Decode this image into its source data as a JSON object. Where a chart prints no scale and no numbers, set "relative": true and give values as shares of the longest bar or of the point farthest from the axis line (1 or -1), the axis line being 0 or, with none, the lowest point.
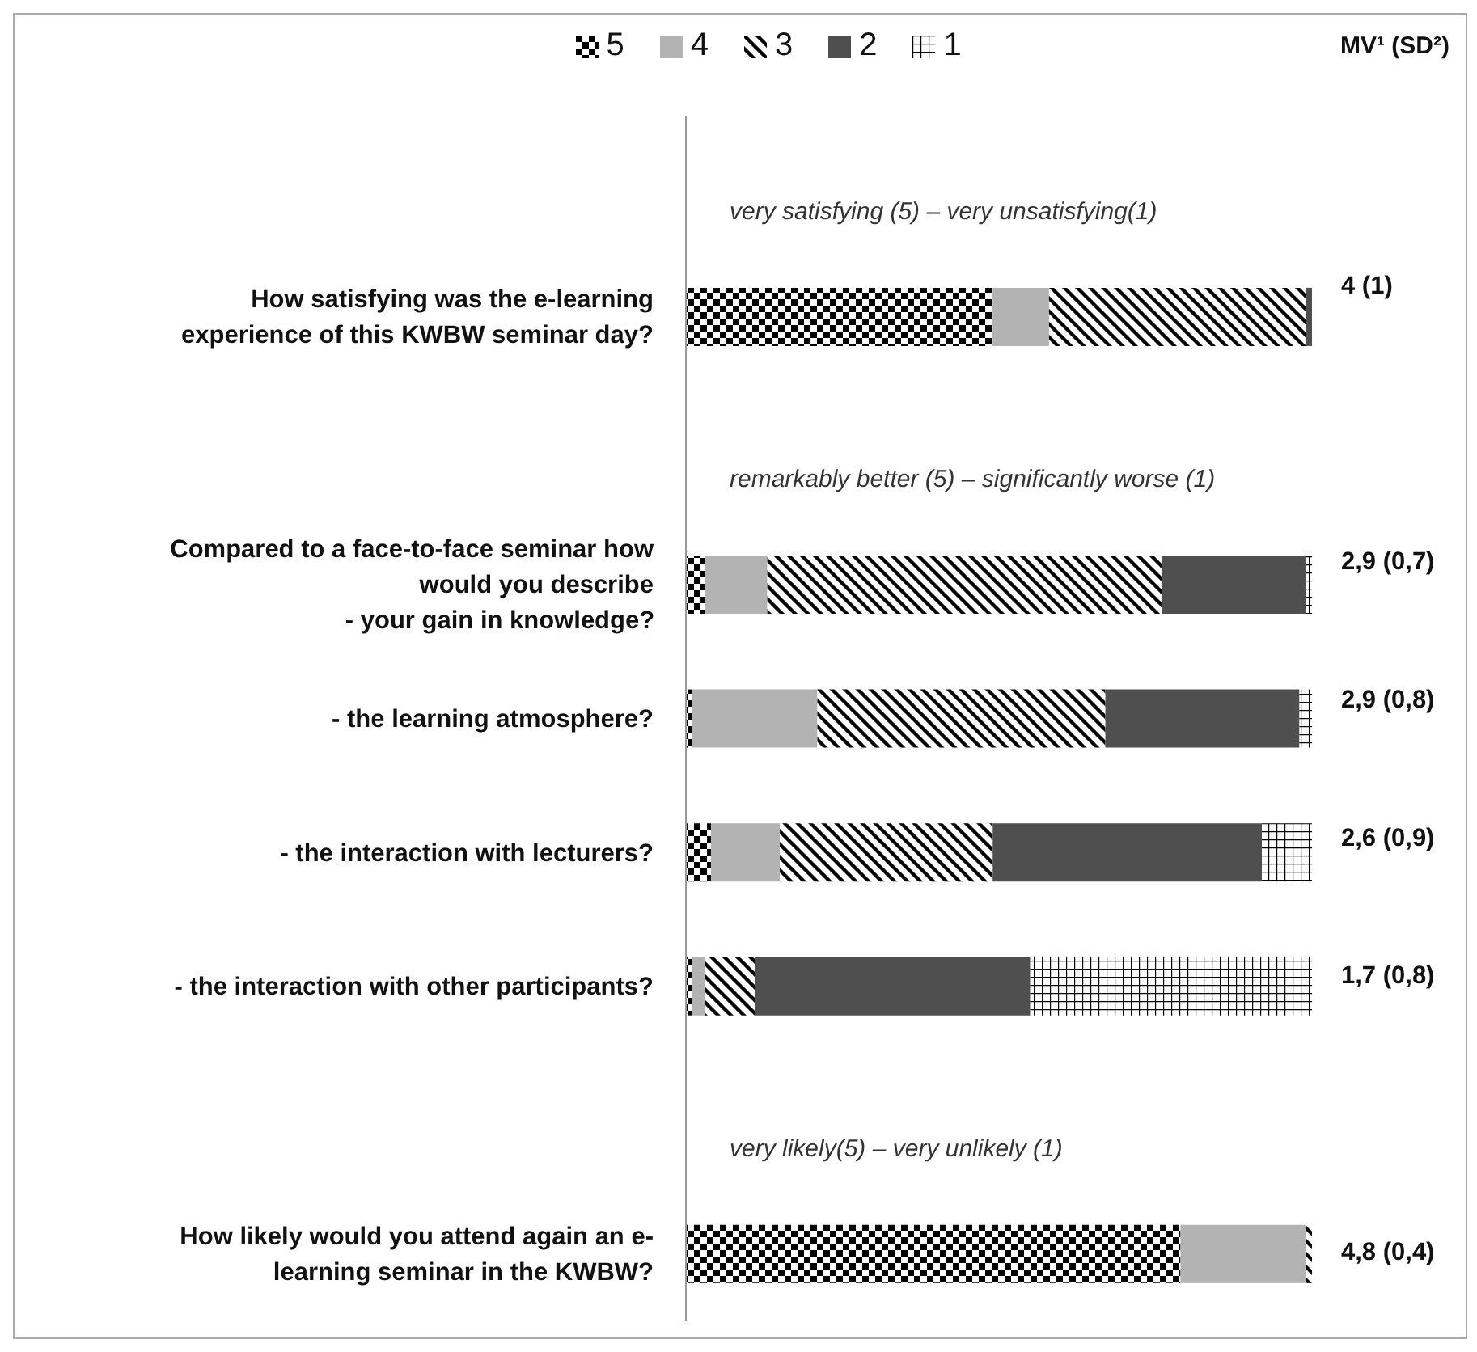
{
  "chart_data": {
    "type": "bar",
    "orientation": "horizontal",
    "stacked": true,
    "relative": true,
    "legend": "top",
    "categories": [
      null,
      "How satisfying was the e-learning\nexperience of this KWBW seminar day?",
      null,
      "Compared to a face-to-face seminar how\nwould you describe\n- your gain in knowledge?",
      "- the learning atmosphere?",
      "- the interaction with lecturers?",
      "- the interaction with other participants?",
      null,
      "How likely would you attend again an e-\nlearning seminar in the KWBW?"
    ],
    "series": [
      {
        "name": "5",
        "color": "#000000",
        "values": [
          null,
          0.49,
          null,
          0.03,
          0.01,
          0.04,
          0.01,
          null,
          0.79
        ]
      },
      {
        "name": "4",
        "color": "#b3b3b3",
        "values": [
          null,
          0.09,
          null,
          0.1,
          0.2,
          0.11,
          0.02,
          null,
          0.2
        ]
      },
      {
        "name": "3",
        "color": "#000000",
        "values": [
          null,
          0.41,
          null,
          0.63,
          0.46,
          0.34,
          0.08,
          null,
          0.01
        ]
      },
      {
        "name": "2",
        "color": "#4f4f4f",
        "values": [
          null,
          0.01,
          null,
          0.23,
          0.31,
          0.43,
          0.44,
          null,
          null
        ]
      },
      {
        "name": "1",
        "color": "#000000",
        "values": [
          null,
          null,
          null,
          0.01,
          0.02,
          0.08,
          0.45,
          null,
          null
        ]
      }
    ],
    "annotations": [
      "very satisfying (5) – very unsatisfying(1)",
      "remarkably better (5) – significantly worse (1)",
      "very likely(5) – very unlikely (1)",
      "MV¹ (SD²)",
      "4 (1)",
      "2,9 (0,7)",
      "2,9 (0,8)",
      "2,6 (0,9)",
      "1,7 (0,8)",
      "4,8 (0,4)"
    ]
  }
}
